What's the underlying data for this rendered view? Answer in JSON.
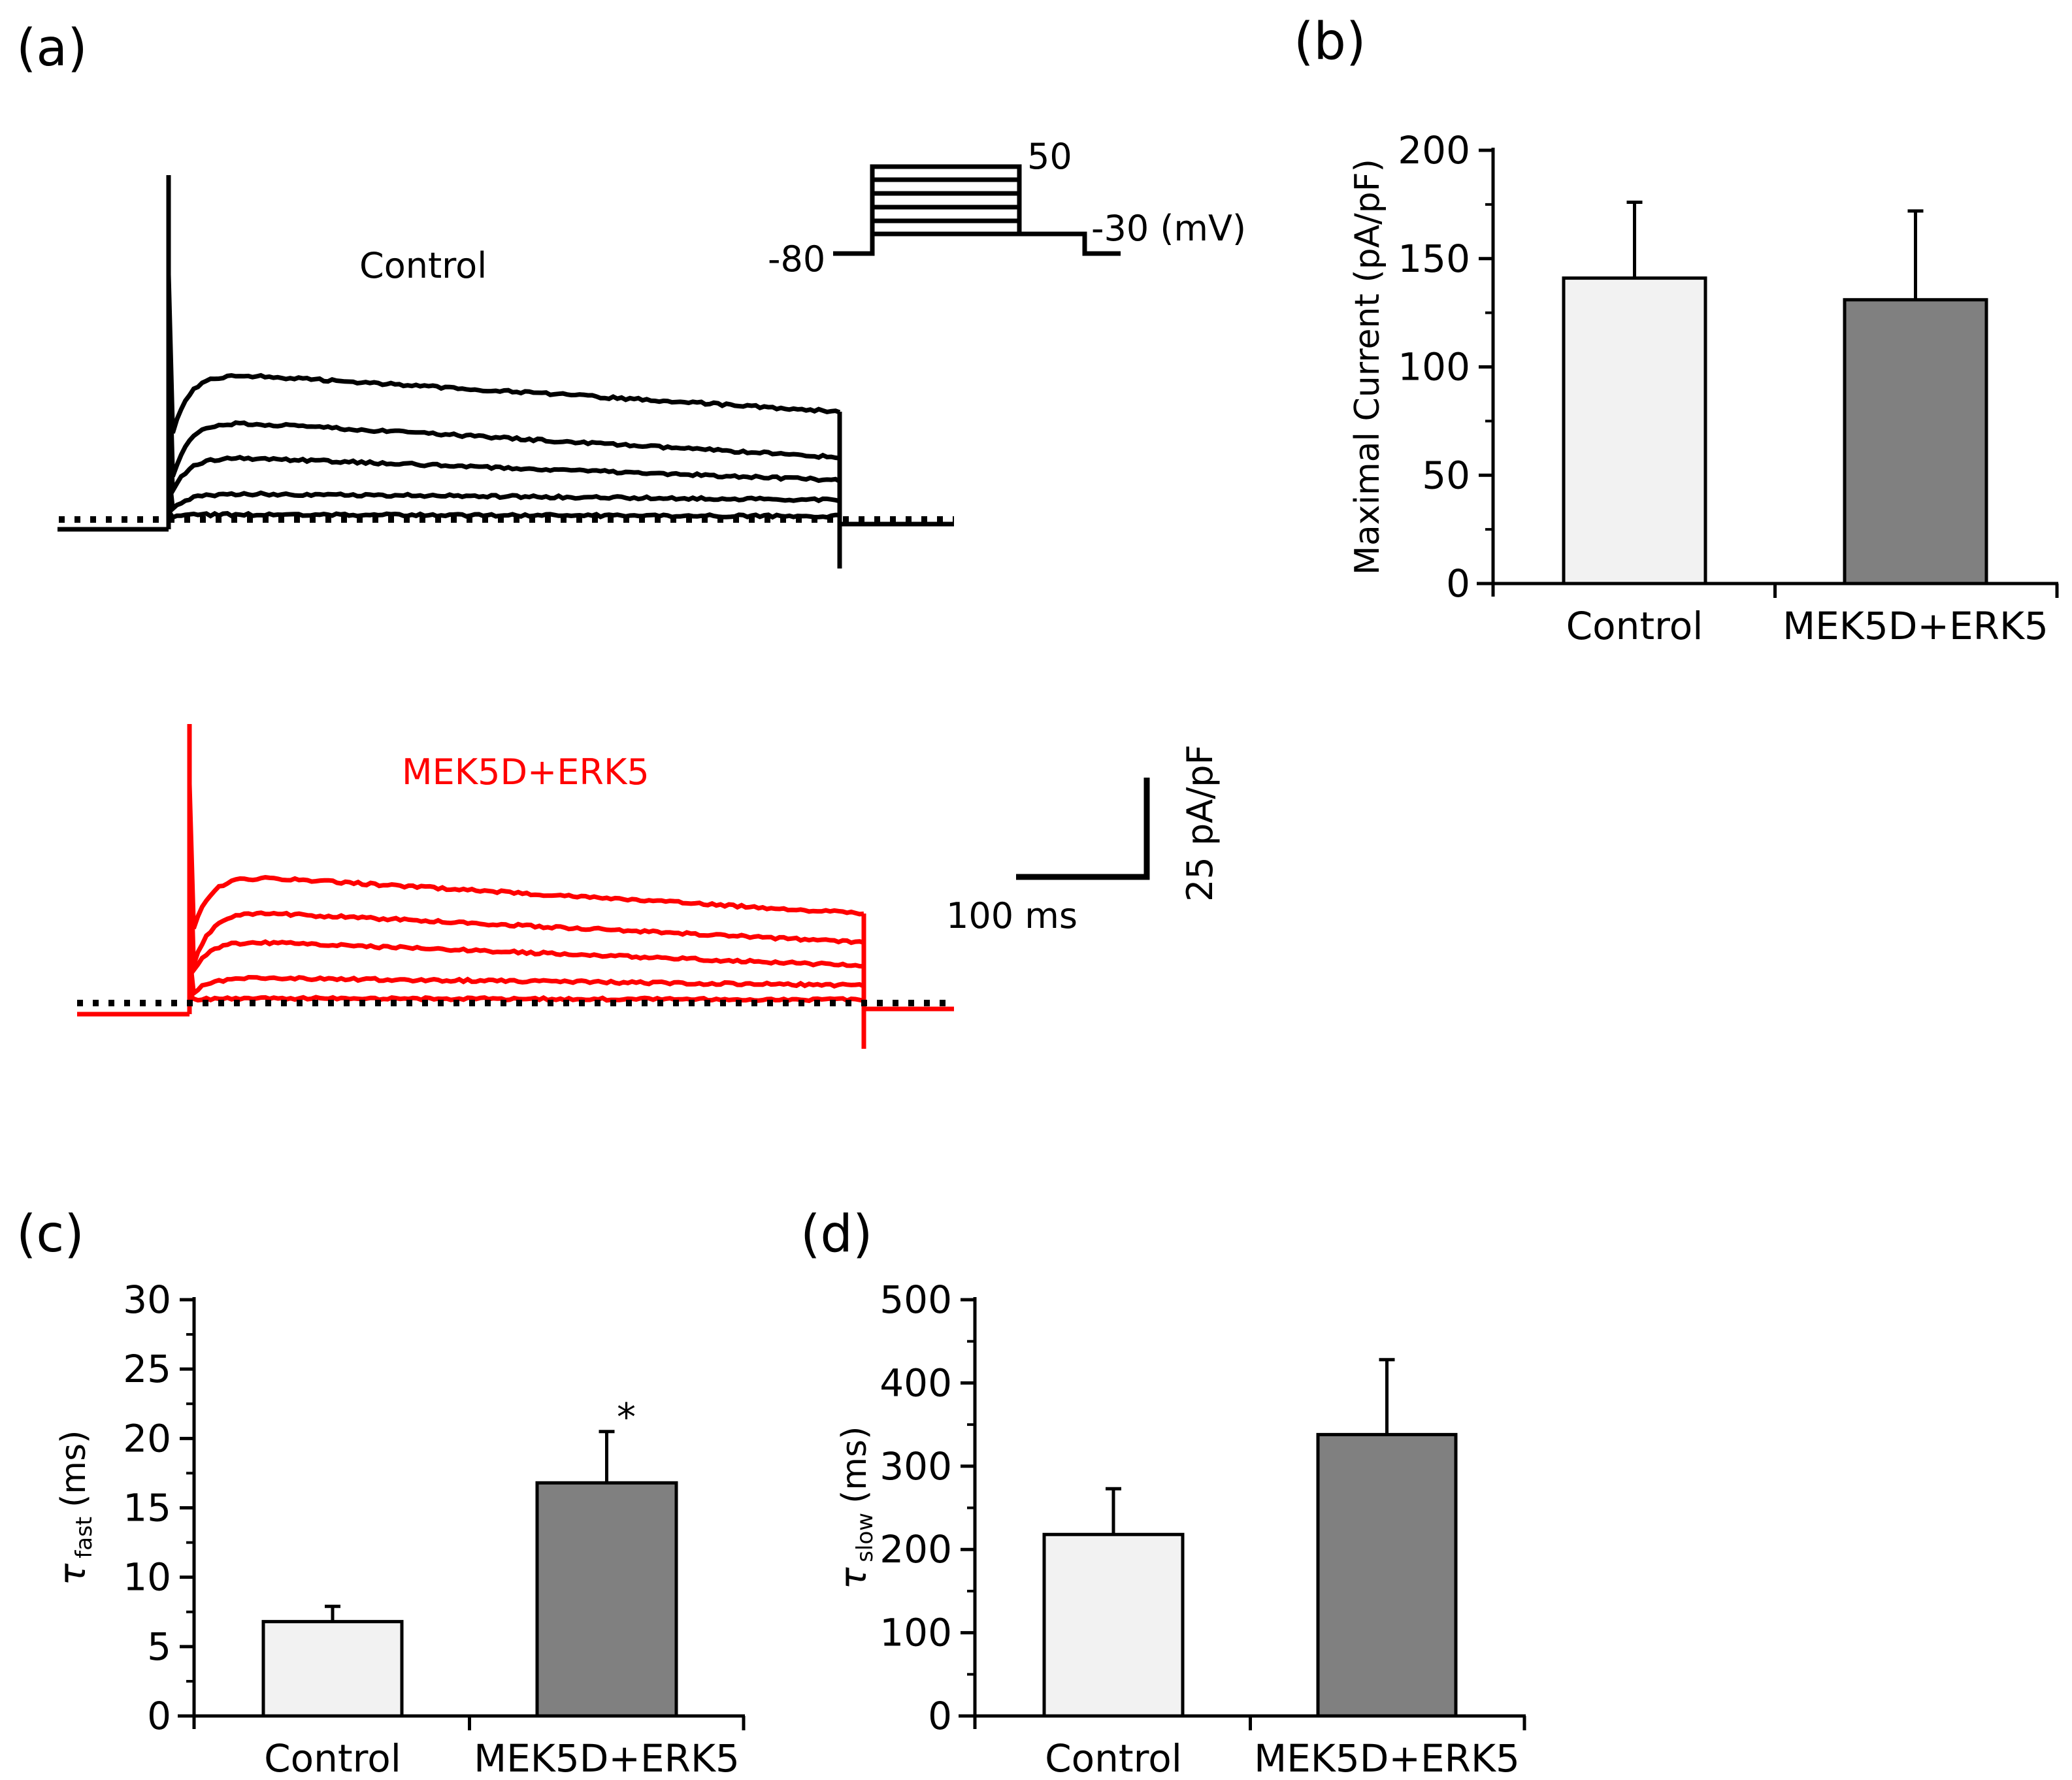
{
  "panels": {
    "a": {
      "label": "(a)",
      "control_label": "Control",
      "treatment_label": "MEK5D+ERK5",
      "protocol": {
        "top_label": "50",
        "hold_label": "-80",
        "post_label": "-30 (mV)"
      },
      "scalebar": {
        "x_label": "100 ms",
        "y_label": "25 pA/pF"
      },
      "colors": {
        "control": "#000000",
        "treatment": "#ff0000"
      }
    },
    "b": {
      "label": "(b)"
    },
    "c": {
      "label": "(c)"
    },
    "d": {
      "label": "(d)"
    }
  },
  "chart_data": [
    {
      "type": "bar",
      "panel": "b",
      "categories": [
        "Control",
        "MEK5D+ERK5"
      ],
      "values": [
        141,
        131
      ],
      "errors": [
        35,
        41
      ],
      "ylabel": "Maximal Current (pA/pF)",
      "ylim": [
        0,
        200
      ],
      "yticks": [
        0,
        50,
        100,
        150,
        200
      ],
      "bar_colors": [
        "#f2f2f2",
        "#808080"
      ],
      "annotations": []
    },
    {
      "type": "bar",
      "panel": "c",
      "categories": [
        "Control",
        "MEK5D+ERK5"
      ],
      "values": [
        6.8,
        16.8
      ],
      "errors": [
        1.1,
        3.7
      ],
      "ylabel_symbol": "τ",
      "ylabel_sub": "fast",
      "ylabel_unit": "(ms)",
      "ylim": [
        0,
        30
      ],
      "yticks": [
        0,
        5,
        10,
        15,
        20,
        25,
        30
      ],
      "bar_colors": [
        "#f2f2f2",
        "#808080"
      ],
      "annotations": [
        "",
        "*"
      ]
    },
    {
      "type": "bar",
      "panel": "d",
      "categories": [
        "Control",
        "MEK5D+ERK5"
      ],
      "values": [
        218,
        338
      ],
      "errors": [
        55,
        90
      ],
      "ylabel_symbol": "τ",
      "ylabel_sub": "slow",
      "ylabel_unit": "(ms)",
      "ylim": [
        0,
        500
      ],
      "yticks": [
        0,
        100,
        200,
        300,
        400,
        500
      ],
      "bar_colors": [
        "#f2f2f2",
        "#808080"
      ],
      "annotations": []
    }
  ]
}
